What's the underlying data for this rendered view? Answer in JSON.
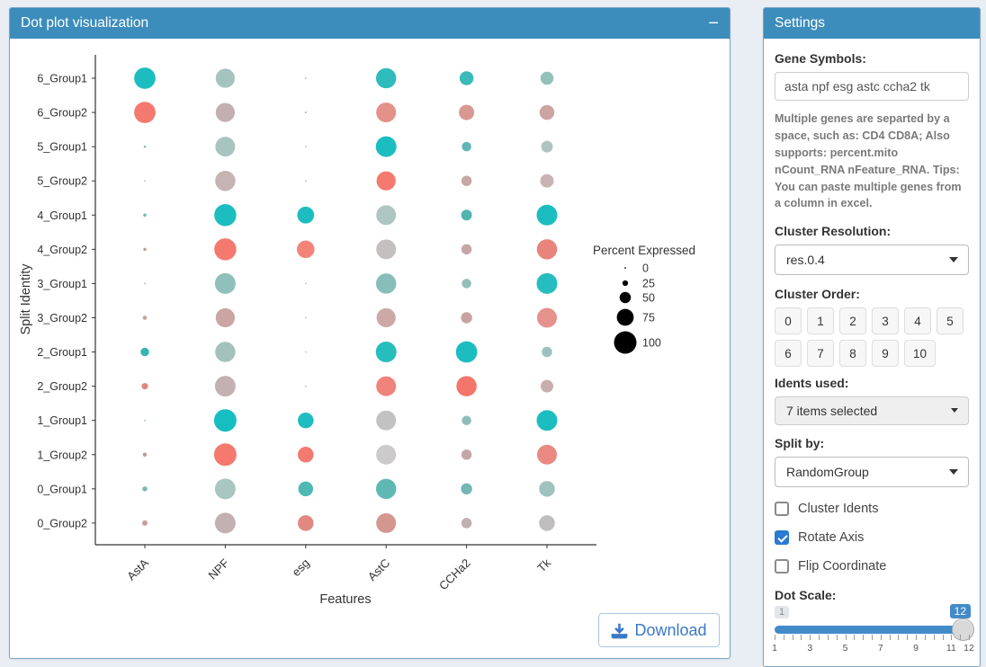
{
  "main_panel": {
    "title": "Dot plot visualization",
    "collapse_icon": "−",
    "download_label": "Download",
    "header_color": "#3c8dbc"
  },
  "chart_data": {
    "type": "dotplot",
    "xlabel": "Features",
    "ylabel": "Split Identity",
    "categories_x": [
      "AstA",
      "NPF",
      "esg",
      "AstC",
      "CCHa2",
      "Tk"
    ],
    "categories_y": [
      "6_Group1",
      "6_Group2",
      "5_Group1",
      "5_Group2",
      "4_Group1",
      "4_Group2",
      "3_Group1",
      "3_Group2",
      "2_Group1",
      "2_Group2",
      "1_Group1",
      "1_Group2",
      "0_Group1",
      "0_Group2"
    ],
    "legend": {
      "title": "Percent Expressed",
      "labels": [
        "0",
        "25",
        "50",
        "75",
        "100"
      ],
      "values": [
        0,
        25,
        50,
        75,
        100
      ]
    },
    "percent_expressed": [
      [
        95,
        85,
        3,
        90,
        62,
        58
      ],
      [
        95,
        85,
        5,
        88,
        68,
        66
      ],
      [
        10,
        88,
        2,
        92,
        42,
        52
      ],
      [
        6,
        90,
        2,
        85,
        46,
        60
      ],
      [
        14,
        98,
        75,
        88,
        48,
        92
      ],
      [
        14,
        98,
        78,
        88,
        46,
        90
      ],
      [
        6,
        92,
        2,
        90,
        42,
        92
      ],
      [
        18,
        85,
        2,
        85,
        50,
        88
      ],
      [
        38,
        90,
        2,
        92,
        95,
        46
      ],
      [
        28,
        92,
        2,
        88,
        90,
        56
      ],
      [
        6,
        100,
        70,
        88,
        42,
        92
      ],
      [
        18,
        100,
        70,
        88,
        46,
        88
      ],
      [
        22,
        92,
        66,
        90,
        50,
        70
      ],
      [
        24,
        92,
        70,
        88,
        46,
        70
      ]
    ],
    "dot_colors": [
      [
        "#1CBDC0",
        "#A5C3BE",
        "#AAAAAA",
        "#2FBCBC",
        "#3ABAB8",
        "#92C0BB"
      ],
      [
        "#F4796F",
        "#C3AFB2",
        "#9E9E9E",
        "#E49189",
        "#D89790",
        "#CCA4A2"
      ],
      [
        "#7FB8B5",
        "#A8C4BF",
        "#BBBBBB",
        "#1CBDC0",
        "#5FB6B2",
        "#AFC4C1"
      ],
      [
        "#BFBFBF",
        "#C6B3B4",
        "#BBBBBB",
        "#F4796F",
        "#C8A7A7",
        "#C8B3B4"
      ],
      [
        "#6FB5B1",
        "#1CBDC0",
        "#1CBDC0",
        "#AEC6C2",
        "#52B5B2",
        "#1CBDC0"
      ],
      [
        "#C29A98",
        "#F4796F",
        "#F4837A",
        "#C5C0C0",
        "#C7A5A5",
        "#E8847C"
      ],
      [
        "#9FBFBC",
        "#8FC0BB",
        "#BBBBBB",
        "#87BEB9",
        "#93BEBA",
        "#25BDBE"
      ],
      [
        "#C79C9B",
        "#CBA5A3",
        "#BBBBBB",
        "#CCA9A7",
        "#C8A3A3",
        "#E4928B"
      ],
      [
        "#35B5B5",
        "#A3C2BE",
        "#BBBBBB",
        "#26BDBD",
        "#1CBDC0",
        "#9DC1BD"
      ],
      [
        "#E0837C",
        "#C3B0B2",
        "#BBBBBB",
        "#F0837B",
        "#F4756B",
        "#C9AEAF"
      ],
      [
        "#8CBBB7",
        "#17BEC1",
        "#1FBDBF",
        "#C2C2C2",
        "#8FBCB8",
        "#1CBDC0"
      ],
      [
        "#C39A9A",
        "#F4796F",
        "#F4796F",
        "#CCCACA",
        "#C5A6A7",
        "#EA8982"
      ],
      [
        "#79B7B2",
        "#A9C6C1",
        "#4FB8B4",
        "#5FB8B3",
        "#74B7B3",
        "#9FC2BE"
      ],
      [
        "#C79C9C",
        "#C3B0B3",
        "#E18981",
        "#D49790",
        "#C0B0B0",
        "#BFBDBD"
      ]
    ]
  },
  "settings": {
    "title": "Settings",
    "gene_symbols": {
      "label": "Gene Symbols:",
      "value": "asta npf esg astc ccha2 tk"
    },
    "help_text": "Multiple genes are separted by a space, such as: CD4 CD8A; Also supports: percent.mito nCount_RNA nFeature_RNA. Tips: You can paste multiple genes from a column in excel.",
    "cluster_resolution": {
      "label": "Cluster Resolution:",
      "value": "res.0.4"
    },
    "cluster_order": {
      "label": "Cluster Order:",
      "items": [
        "0",
        "1",
        "2",
        "3",
        "4",
        "5",
        "6",
        "7",
        "8",
        "9",
        "10"
      ]
    },
    "idents_used": {
      "label": "Idents used:",
      "value": "7 items selected"
    },
    "split_by": {
      "label": "Split by:",
      "value": "RandomGroup"
    },
    "checkboxes": [
      {
        "label": "Cluster Idents",
        "checked": false
      },
      {
        "label": "Rotate Axis",
        "checked": true
      },
      {
        "label": "Flip Coordinate",
        "checked": false
      }
    ],
    "dot_scale": {
      "label": "Dot Scale:",
      "min_badge": "1",
      "value_badge": "12",
      "slider_min": 1,
      "slider_max": 12,
      "tick_labels": [
        "1",
        "3",
        "5",
        "7",
        "9",
        "11",
        "12"
      ],
      "accent_color": "#428bca"
    }
  }
}
